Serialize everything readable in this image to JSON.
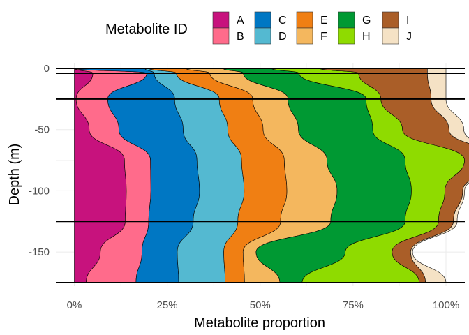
{
  "chart_data": {
    "type": "area",
    "orientation": "vertical-depth",
    "xlabel": "Metabolite proportion",
    "ylabel": "Depth (m)",
    "xlim": [
      0,
      1
    ],
    "ylim": [
      -175,
      0
    ],
    "x_ticks": [
      0,
      0.25,
      0.5,
      0.75,
      1
    ],
    "x_tick_labels": [
      "0%",
      "25%",
      "50%",
      "75%",
      "100%"
    ],
    "y_ticks": [
      0,
      -50,
      -100,
      -150
    ],
    "y_tick_labels": [
      "0",
      "-50",
      "-100",
      "-150"
    ],
    "grid": true,
    "legend": {
      "title": "Metabolite ID",
      "position": "top",
      "items": [
        "A",
        "B",
        "C",
        "D",
        "E",
        "F",
        "G",
        "H",
        "I",
        "J"
      ]
    },
    "reference_lines_depth": [
      0,
      -4,
      -25,
      -125,
      -175
    ],
    "depths": [
      0,
      -4,
      -25,
      -50,
      -75,
      -100,
      -125,
      -150,
      -175
    ],
    "series": [
      {
        "name": "A",
        "color": "#c7127d",
        "values": [
          0.0,
          0.05,
          0.005,
          0.04,
          0.135,
          0.14,
          0.137,
          0.07,
          0.032
        ]
      },
      {
        "name": "B",
        "color": "#ff6b8b",
        "values": [
          0.0,
          0.145,
          0.085,
          0.08,
          0.07,
          0.066,
          0.063,
          0.112,
          0.134
        ]
      },
      {
        "name": "C",
        "color": "#0077c3",
        "values": [
          0.19,
          0.02,
          0.18,
          0.173,
          0.125,
          0.131,
          0.12,
          0.095,
          0.115
        ]
      },
      {
        "name": "D",
        "color": "#54b9d1",
        "values": [
          0.01,
          0.06,
          0.12,
          0.12,
          0.12,
          0.12,
          0.12,
          0.125,
          0.125
        ]
      },
      {
        "name": "E",
        "color": "#f07f13",
        "values": [
          0.1,
          0.09,
          0.09,
          0.095,
          0.115,
          0.115,
          0.115,
          0.052,
          0.052
        ]
      },
      {
        "name": "F",
        "color": "#f4b75e",
        "values": [
          0.1,
          0.09,
          0.095,
          0.095,
          0.115,
          0.135,
          0.135,
          0.035,
          0.095
        ]
      },
      {
        "name": "G",
        "color": "#009933",
        "values": [
          0.13,
          0.15,
          0.21,
          0.2,
          0.21,
          0.2,
          0.2,
          0.24,
          0.06
        ]
      },
      {
        "name": "H",
        "color": "#8fdb00",
        "values": [
          0.13,
          0.16,
          0.04,
          0.08,
          0.16,
          0.09,
          0.09,
          0.126,
          0.315
        ]
      },
      {
        "name": "I",
        "color": "#aa5e28",
        "values": [
          0.29,
          0.185,
          0.135,
          0.125,
          0.09,
          0.048,
          0.04,
          0.05,
          0.017
        ]
      },
      {
        "name": "J",
        "color": "#f5e2c5",
        "values": [
          0.05,
          0.05,
          0.04,
          0.04,
          0.01,
          0.005,
          0.01,
          0.005,
          0.055
        ]
      }
    ]
  }
}
